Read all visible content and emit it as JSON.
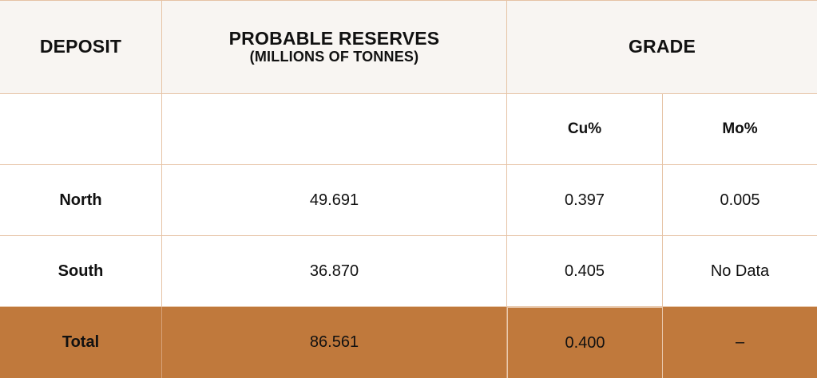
{
  "table": {
    "headers": {
      "deposit": "DEPOSIT",
      "reserves_line1": "PROBABLE RESERVES",
      "reserves_line2": "(MILLIONS OF TONNES)",
      "grade": "GRADE"
    },
    "subheaders": {
      "deposit": "",
      "reserves": "",
      "cu": "Cu%",
      "mo": "Mo%"
    },
    "rows": [
      {
        "deposit": "North",
        "reserves": "49.691",
        "cu": "0.397",
        "mo": "0.005"
      },
      {
        "deposit": "South",
        "reserves": "36.870",
        "cu": "0.405",
        "mo": "No Data"
      }
    ],
    "total": {
      "deposit": "Total",
      "reserves": "86.561",
      "cu": "0.400",
      "mo": "–"
    }
  },
  "colors": {
    "header_bg": "#f8f5f2",
    "grid_line": "#e6c3a5",
    "total_bg": "#c0793c"
  }
}
